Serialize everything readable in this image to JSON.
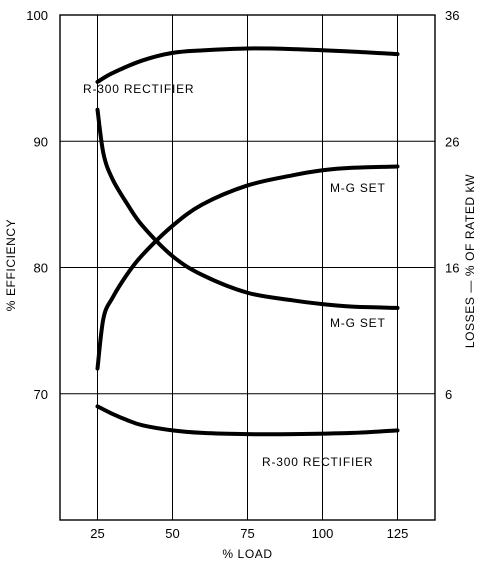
{
  "chart_data": {
    "type": "line",
    "xlabel": "% LOAD",
    "ylabel_left": "% EFFICIENCY",
    "ylabel_right": "LOSSES — % OF RATED kW",
    "x_ticks": [
      25,
      50,
      75,
      100,
      125
    ],
    "x_range": [
      12.5,
      137.5
    ],
    "y_left_ticks": [
      70,
      80,
      90,
      100
    ],
    "y_left_range": [
      60,
      100
    ],
    "y_right_ticks": [
      6,
      16,
      26,
      36
    ],
    "y_right_range": [
      -4,
      36
    ],
    "grid": true,
    "series": [
      {
        "name": "R-300 RECTIFIER",
        "axis": "left",
        "metric": "efficiency",
        "points": [
          [
            25,
            94.7
          ],
          [
            30,
            95.4
          ],
          [
            40,
            96.4
          ],
          [
            50,
            97.0
          ],
          [
            60,
            97.2
          ],
          [
            75,
            97.35
          ],
          [
            90,
            97.3
          ],
          [
            110,
            97.1
          ],
          [
            125,
            96.9
          ]
        ]
      },
      {
        "name": "M-G SET",
        "axis": "left",
        "metric": "efficiency",
        "points": [
          [
            25,
            72.0
          ],
          [
            27,
            76.0
          ],
          [
            30,
            77.6
          ],
          [
            35,
            79.5
          ],
          [
            40,
            81.0
          ],
          [
            50,
            83.3
          ],
          [
            60,
            85.0
          ],
          [
            75,
            86.5
          ],
          [
            90,
            87.3
          ],
          [
            100,
            87.7
          ],
          [
            110,
            87.9
          ],
          [
            125,
            88.0
          ]
        ]
      },
      {
        "name": "M-G SET",
        "axis": "right",
        "metric": "losses",
        "points": [
          [
            25,
            28.5
          ],
          [
            27,
            25.0
          ],
          [
            30,
            23.0
          ],
          [
            35,
            21.0
          ],
          [
            40,
            19.3
          ],
          [
            50,
            16.9
          ],
          [
            60,
            15.4
          ],
          [
            75,
            14.0
          ],
          [
            90,
            13.4
          ],
          [
            100,
            13.1
          ],
          [
            110,
            12.9
          ],
          [
            125,
            12.8
          ]
        ]
      },
      {
        "name": "R-300 RECTIFIER",
        "axis": "right",
        "metric": "losses",
        "points": [
          [
            25,
            5.0
          ],
          [
            30,
            4.4
          ],
          [
            35,
            3.9
          ],
          [
            40,
            3.5
          ],
          [
            50,
            3.1
          ],
          [
            60,
            2.9
          ],
          [
            75,
            2.8
          ],
          [
            90,
            2.8
          ],
          [
            110,
            2.9
          ],
          [
            125,
            3.1
          ]
        ]
      }
    ]
  }
}
